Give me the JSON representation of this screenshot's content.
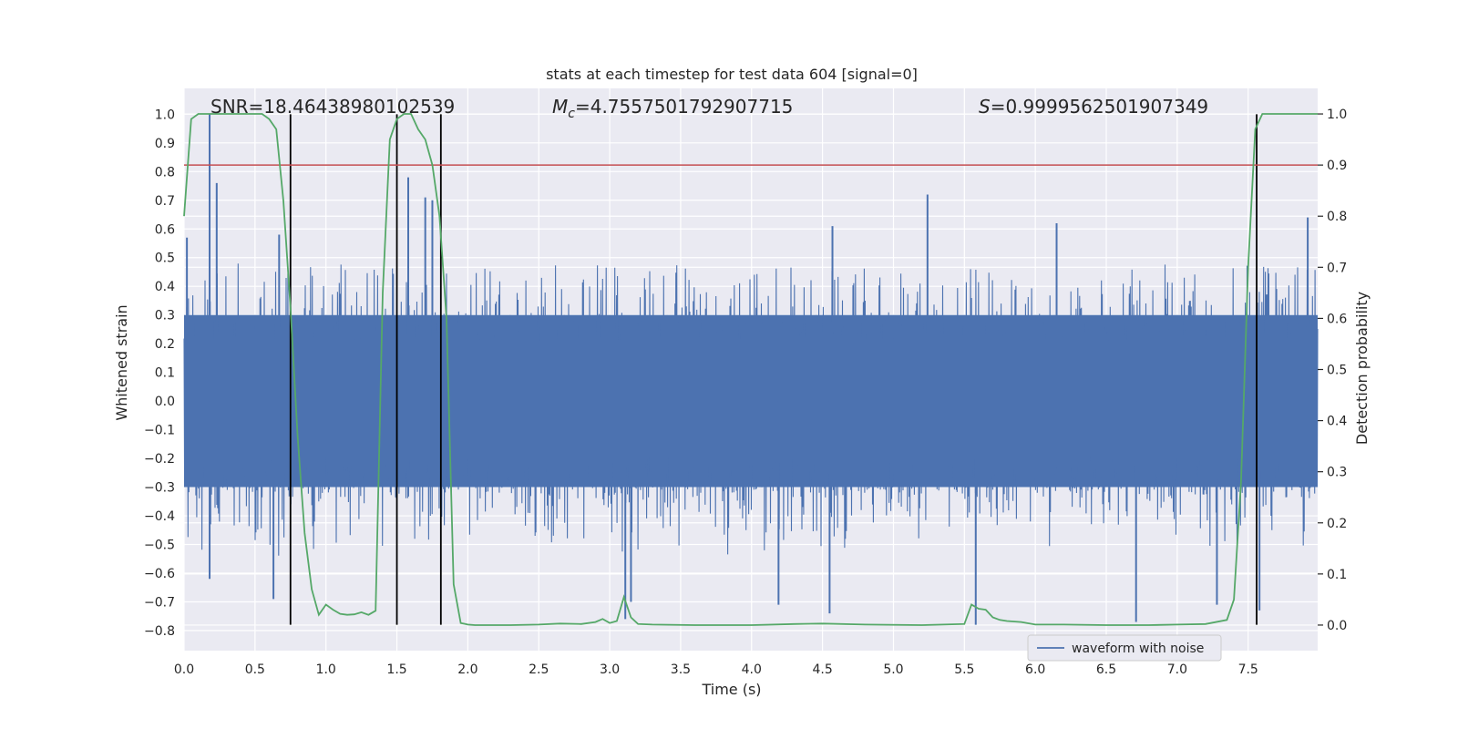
{
  "chart_data": {
    "type": "line",
    "title": "stats at each timestep for test data 604 [signal=0]",
    "xlabel": "Time (s)",
    "ylabel": "Whitened strain",
    "y2label": "Detection probability",
    "xlim": [
      0.0,
      7.99
    ],
    "ylim": [
      -0.87,
      1.09
    ],
    "y2lim": [
      -0.05,
      1.05
    ],
    "x_ticks": [
      0.0,
      0.5,
      1.0,
      1.5,
      2.0,
      2.5,
      3.0,
      3.5,
      4.0,
      4.5,
      5.0,
      5.5,
      6.0,
      6.5,
      7.0,
      7.5
    ],
    "x_tick_labels": [
      "0.0",
      "0.5",
      "1.0",
      "1.5",
      "2.0",
      "2.5",
      "3.0",
      "3.5",
      "4.0",
      "4.5",
      "5.0",
      "5.5",
      "6.0",
      "6.5",
      "7.0",
      "7.5"
    ],
    "y_ticks": [
      -0.8,
      -0.7,
      -0.6,
      -0.5,
      -0.4,
      -0.3,
      -0.2,
      -0.1,
      0.0,
      0.1,
      0.2,
      0.3,
      0.4,
      0.5,
      0.6,
      0.7,
      0.8,
      0.9,
      1.0
    ],
    "y_tick_labels": [
      "−0.8",
      "−0.7",
      "−0.6",
      "−0.5",
      "−0.4",
      "−0.3",
      "−0.2",
      "−0.1",
      "0.0",
      "0.1",
      "0.2",
      "0.3",
      "0.4",
      "0.5",
      "0.6",
      "0.7",
      "0.8",
      "0.9",
      "1.0"
    ],
    "y2_ticks": [
      0.0,
      0.1,
      0.2,
      0.3,
      0.4,
      0.5,
      0.6,
      0.7,
      0.8,
      0.9,
      1.0
    ],
    "y2_tick_labels": [
      "0.0",
      "0.1",
      "0.2",
      "0.3",
      "0.4",
      "0.5",
      "0.6",
      "0.7",
      "0.8",
      "0.9",
      "1.0"
    ],
    "annotations": {
      "snr": "SNR=18.46438980102539",
      "mc_symbol": "M",
      "mc_sub": "c",
      "mc_value": "=4.7557501792907715",
      "s_symbol": "S",
      "s_value": "=0.9999562501907349"
    },
    "legend": {
      "label": "waveform with noise",
      "location": "lower-right"
    },
    "threshold": {
      "value": 0.9,
      "axis": "y2",
      "color": "#c44e52"
    },
    "boundaries": {
      "x": [
        0.75,
        1.5,
        1.81,
        7.56
      ],
      "y_top": 1.0,
      "y_bottom": -0.78,
      "color": "#000000"
    },
    "waveform": {
      "name": "waveform with noise",
      "color": "#4c72b0",
      "x_range": [
        0.0,
        7.99
      ],
      "band_low": -0.3,
      "band_high": 0.3,
      "typical_peak_high": 0.42,
      "typical_peak_low": -0.42,
      "spikes": [
        {
          "x": 0.18,
          "y": 1.0
        },
        {
          "x": 0.18,
          "y": -0.62
        },
        {
          "x": 0.23,
          "y": 0.76
        },
        {
          "x": 0.02,
          "y": 0.57
        },
        {
          "x": 0.63,
          "y": -0.69
        },
        {
          "x": 0.67,
          "y": 0.58
        },
        {
          "x": 1.58,
          "y": 0.78
        },
        {
          "x": 1.7,
          "y": 0.71
        },
        {
          "x": 1.75,
          "y": 0.7
        },
        {
          "x": 3.11,
          "y": -0.76
        },
        {
          "x": 3.15,
          "y": -0.7
        },
        {
          "x": 4.19,
          "y": -0.71
        },
        {
          "x": 4.55,
          "y": -0.74
        },
        {
          "x": 5.24,
          "y": 0.72
        },
        {
          "x": 5.58,
          "y": -0.78
        },
        {
          "x": 6.71,
          "y": -0.77
        },
        {
          "x": 7.28,
          "y": -0.71
        },
        {
          "x": 7.58,
          "y": -0.73
        },
        {
          "x": 7.92,
          "y": 0.64
        },
        {
          "x": 4.57,
          "y": 0.61
        },
        {
          "x": 6.15,
          "y": 0.62
        }
      ]
    },
    "probability": {
      "name": "detection probability",
      "color": "#55a868",
      "x": [
        0.0,
        0.05,
        0.1,
        0.2,
        0.3,
        0.4,
        0.5,
        0.55,
        0.6,
        0.65,
        0.7,
        0.75,
        0.8,
        0.85,
        0.9,
        0.95,
        1.0,
        1.05,
        1.1,
        1.15,
        1.2,
        1.25,
        1.3,
        1.35,
        1.4,
        1.45,
        1.5,
        1.55,
        1.6,
        1.65,
        1.7,
        1.75,
        1.8,
        1.85,
        1.9,
        1.95,
        2.0,
        2.05,
        2.1,
        2.3,
        2.5,
        2.65,
        2.8,
        2.9,
        2.95,
        3.0,
        3.05,
        3.1,
        3.15,
        3.2,
        3.3,
        3.6,
        4.0,
        4.3,
        4.5,
        4.8,
        5.2,
        5.5,
        5.55,
        5.6,
        5.65,
        5.7,
        5.75,
        5.8,
        5.9,
        6.0,
        6.2,
        6.5,
        6.8,
        7.0,
        7.2,
        7.35,
        7.4,
        7.45,
        7.5,
        7.55,
        7.6,
        7.65,
        7.7,
        7.8,
        7.9,
        7.99
      ],
      "values": [
        0.8,
        0.99,
        1.0,
        1.0,
        1.0,
        1.0,
        1.0,
        1.0,
        0.99,
        0.97,
        0.83,
        0.62,
        0.37,
        0.18,
        0.07,
        0.02,
        0.04,
        0.03,
        0.022,
        0.02,
        0.021,
        0.025,
        0.02,
        0.028,
        0.65,
        0.95,
        0.99,
        1.0,
        1.0,
        0.97,
        0.95,
        0.9,
        0.8,
        0.6,
        0.08,
        0.004,
        0.001,
        0.0,
        0.0,
        0.0,
        0.001,
        0.003,
        0.002,
        0.006,
        0.012,
        0.004,
        0.008,
        0.055,
        0.015,
        0.002,
        0.001,
        0.0,
        0.0,
        0.002,
        0.003,
        0.001,
        0.0,
        0.002,
        0.04,
        0.032,
        0.03,
        0.015,
        0.01,
        0.008,
        0.006,
        0.001,
        0.001,
        0.0,
        0.0,
        0.001,
        0.002,
        0.01,
        0.05,
        0.28,
        0.7,
        0.97,
        1.0,
        1.0,
        1.0,
        1.0,
        1.0,
        1.0
      ]
    }
  }
}
